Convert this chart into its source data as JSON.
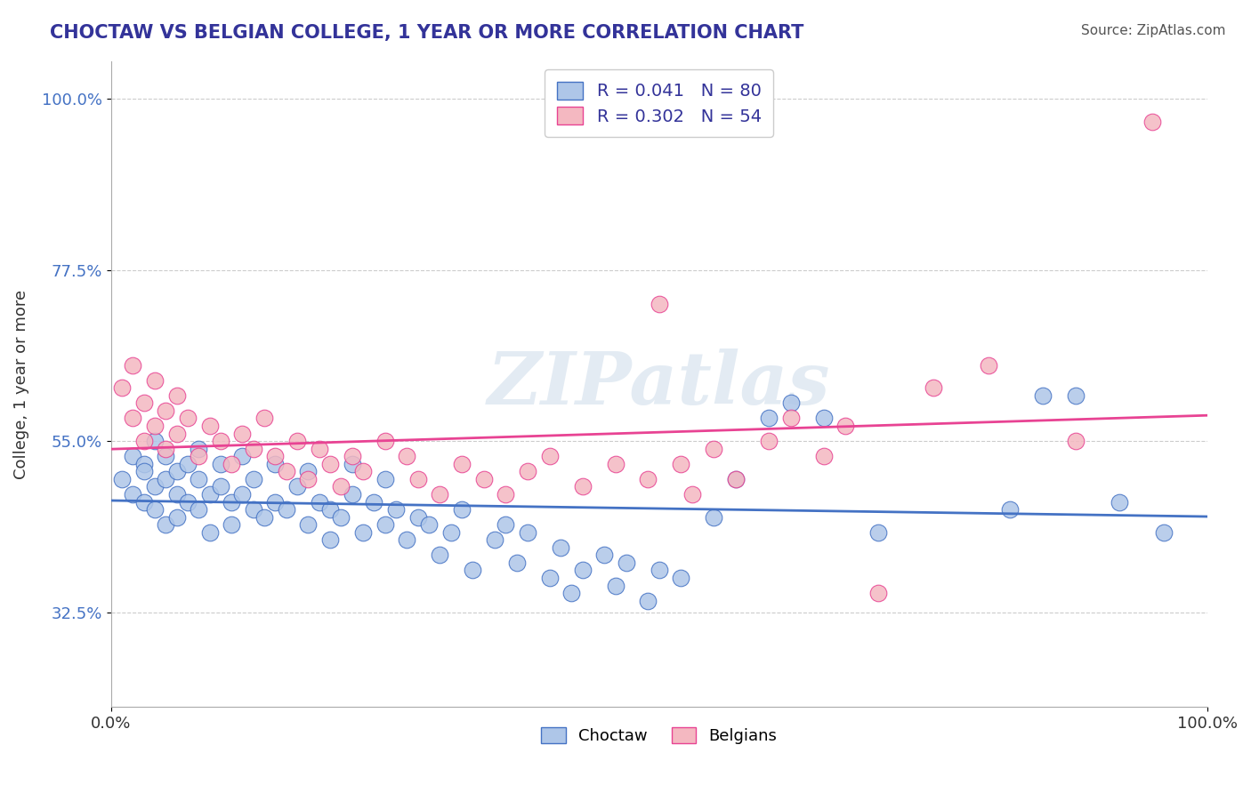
{
  "title": "CHOCTAW VS BELGIAN COLLEGE, 1 YEAR OR MORE CORRELATION CHART",
  "source_text": "Source: ZipAtlas.com",
  "ylabel": "College, 1 year or more",
  "xlabel": "",
  "xlim": [
    0.0,
    1.0
  ],
  "ylim": [
    0.0,
    1.0
  ],
  "xtick_labels": [
    "0.0%",
    "100.0%"
  ],
  "ytick_labels": [
    "32.5%",
    "55.0%",
    "77.5%",
    "100.0%"
  ],
  "ytick_positions": [
    0.325,
    0.55,
    0.775,
    1.0
  ],
  "grid_color": "#cccccc",
  "background_color": "#ffffff",
  "choctaw_color": "#aec6e8",
  "belgian_color": "#f4b8c1",
  "choctaw_line_color": "#4472c4",
  "belgian_line_color": "#e84393",
  "choctaw_R": 0.041,
  "choctaw_N": 80,
  "belgian_R": 0.302,
  "belgian_N": 54,
  "legend_label_choctaw": "Choctaw",
  "legend_label_belgian": "Belgians",
  "watermark": "ZIPatlas",
  "title_color": "#333399",
  "legend_text_color": "#333399",
  "choctaw_x": [
    0.01,
    0.02,
    0.02,
    0.03,
    0.03,
    0.03,
    0.04,
    0.04,
    0.04,
    0.05,
    0.05,
    0.05,
    0.06,
    0.06,
    0.06,
    0.07,
    0.07,
    0.08,
    0.08,
    0.08,
    0.09,
    0.09,
    0.1,
    0.1,
    0.11,
    0.11,
    0.12,
    0.12,
    0.13,
    0.13,
    0.14,
    0.15,
    0.15,
    0.16,
    0.17,
    0.18,
    0.18,
    0.19,
    0.2,
    0.2,
    0.21,
    0.22,
    0.22,
    0.23,
    0.24,
    0.25,
    0.25,
    0.26,
    0.27,
    0.28,
    0.29,
    0.3,
    0.31,
    0.32,
    0.33,
    0.35,
    0.36,
    0.37,
    0.38,
    0.4,
    0.41,
    0.42,
    0.43,
    0.45,
    0.46,
    0.47,
    0.49,
    0.5,
    0.52,
    0.55,
    0.57,
    0.6,
    0.62,
    0.65,
    0.7,
    0.82,
    0.85,
    0.88,
    0.92,
    0.96
  ],
  "choctaw_y": [
    0.5,
    0.53,
    0.48,
    0.52,
    0.47,
    0.51,
    0.49,
    0.55,
    0.46,
    0.5,
    0.44,
    0.53,
    0.48,
    0.51,
    0.45,
    0.52,
    0.47,
    0.5,
    0.46,
    0.54,
    0.48,
    0.43,
    0.49,
    0.52,
    0.47,
    0.44,
    0.48,
    0.53,
    0.46,
    0.5,
    0.45,
    0.47,
    0.52,
    0.46,
    0.49,
    0.44,
    0.51,
    0.47,
    0.42,
    0.46,
    0.45,
    0.48,
    0.52,
    0.43,
    0.47,
    0.44,
    0.5,
    0.46,
    0.42,
    0.45,
    0.44,
    0.4,
    0.43,
    0.46,
    0.38,
    0.42,
    0.44,
    0.39,
    0.43,
    0.37,
    0.41,
    0.35,
    0.38,
    0.4,
    0.36,
    0.39,
    0.34,
    0.38,
    0.37,
    0.45,
    0.5,
    0.58,
    0.6,
    0.58,
    0.43,
    0.46,
    0.61,
    0.61,
    0.47,
    0.43
  ],
  "belgian_x": [
    0.01,
    0.02,
    0.02,
    0.03,
    0.03,
    0.04,
    0.04,
    0.05,
    0.05,
    0.06,
    0.06,
    0.07,
    0.08,
    0.09,
    0.1,
    0.11,
    0.12,
    0.13,
    0.14,
    0.15,
    0.16,
    0.17,
    0.18,
    0.19,
    0.2,
    0.21,
    0.22,
    0.23,
    0.25,
    0.27,
    0.28,
    0.3,
    0.32,
    0.34,
    0.36,
    0.38,
    0.4,
    0.43,
    0.46,
    0.49,
    0.5,
    0.52,
    0.53,
    0.55,
    0.57,
    0.6,
    0.62,
    0.65,
    0.67,
    0.7,
    0.75,
    0.8,
    0.88,
    0.95
  ],
  "belgian_y": [
    0.62,
    0.58,
    0.65,
    0.6,
    0.55,
    0.63,
    0.57,
    0.59,
    0.54,
    0.61,
    0.56,
    0.58,
    0.53,
    0.57,
    0.55,
    0.52,
    0.56,
    0.54,
    0.58,
    0.53,
    0.51,
    0.55,
    0.5,
    0.54,
    0.52,
    0.49,
    0.53,
    0.51,
    0.55,
    0.53,
    0.5,
    0.48,
    0.52,
    0.5,
    0.48,
    0.51,
    0.53,
    0.49,
    0.52,
    0.5,
    0.73,
    0.52,
    0.48,
    0.54,
    0.5,
    0.55,
    0.58,
    0.53,
    0.57,
    0.35,
    0.62,
    0.65,
    0.55,
    0.97
  ]
}
